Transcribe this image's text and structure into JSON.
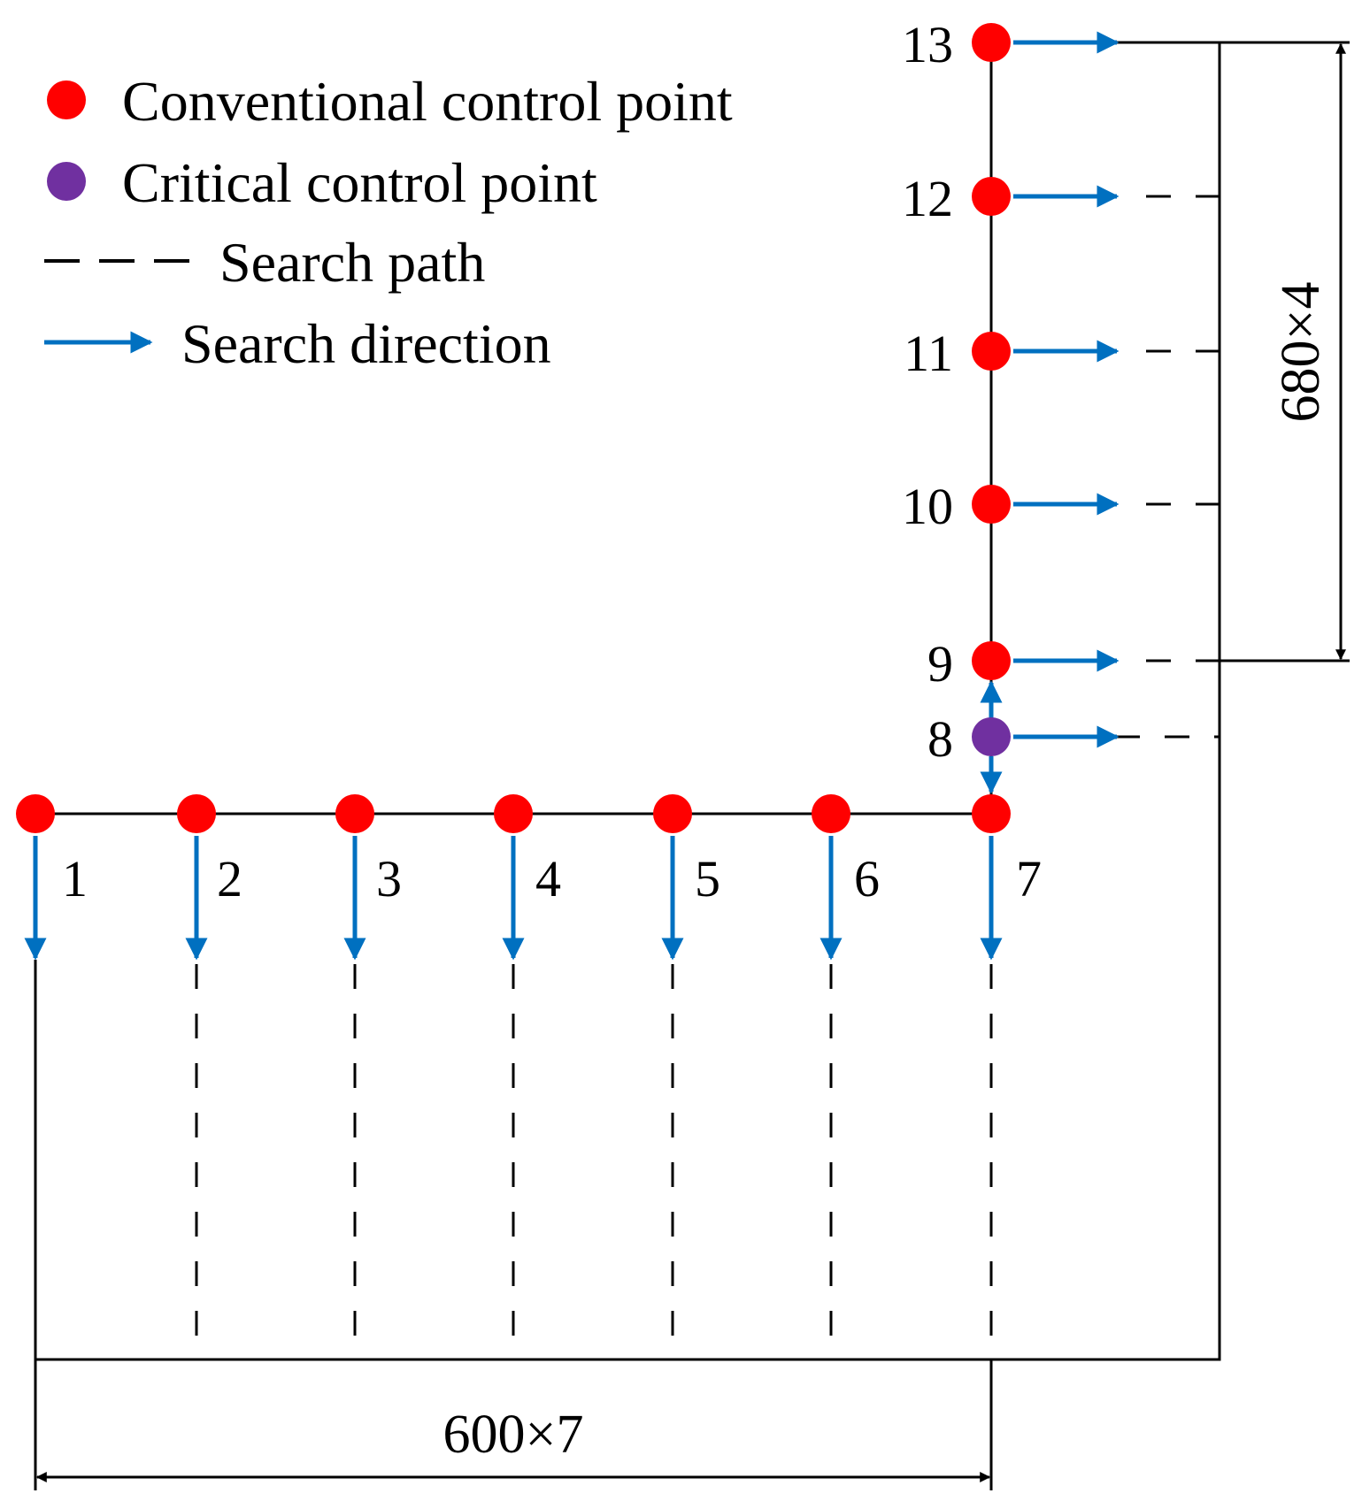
{
  "legend": {
    "conventional": "Conventional control point",
    "critical": "Critical control point",
    "search_path": "Search path",
    "search_direction": "Search direction"
  },
  "colors": {
    "conventional": "#FF0000",
    "critical": "#7030A0",
    "arrow": "#0070C0",
    "line": "#000000"
  },
  "dimensions": {
    "bottom": "600×7",
    "right": "680×4"
  },
  "points": [
    {
      "id": "1",
      "type": "conventional",
      "direction": "down"
    },
    {
      "id": "2",
      "type": "conventional",
      "direction": "down"
    },
    {
      "id": "3",
      "type": "conventional",
      "direction": "down"
    },
    {
      "id": "4",
      "type": "conventional",
      "direction": "down"
    },
    {
      "id": "5",
      "type": "conventional",
      "direction": "down"
    },
    {
      "id": "6",
      "type": "conventional",
      "direction": "down"
    },
    {
      "id": "7",
      "type": "conventional",
      "direction": "down"
    },
    {
      "id": "8",
      "type": "critical",
      "direction": "right"
    },
    {
      "id": "9",
      "type": "conventional",
      "direction": "right"
    },
    {
      "id": "10",
      "type": "conventional",
      "direction": "right"
    },
    {
      "id": "11",
      "type": "conventional",
      "direction": "right"
    },
    {
      "id": "12",
      "type": "conventional",
      "direction": "right"
    },
    {
      "id": "13",
      "type": "conventional",
      "direction": "right"
    }
  ]
}
